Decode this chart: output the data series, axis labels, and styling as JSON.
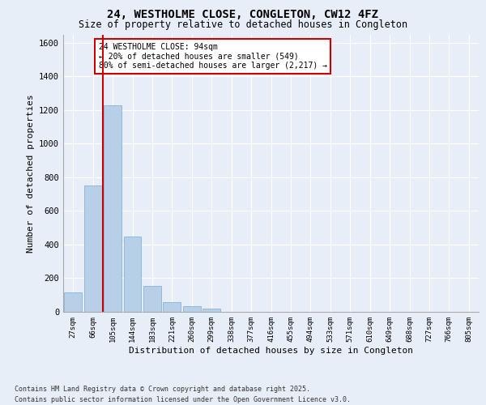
{
  "title_line1": "24, WESTHOLME CLOSE, CONGLETON, CW12 4FZ",
  "title_line2": "Size of property relative to detached houses in Congleton",
  "xlabel": "Distribution of detached houses by size in Congleton",
  "ylabel": "Number of detached properties",
  "categories": [
    "27sqm",
    "66sqm",
    "105sqm",
    "144sqm",
    "183sqm",
    "221sqm",
    "260sqm",
    "299sqm",
    "338sqm",
    "377sqm",
    "416sqm",
    "455sqm",
    "494sqm",
    "533sqm",
    "571sqm",
    "610sqm",
    "649sqm",
    "688sqm",
    "727sqm",
    "766sqm",
    "805sqm"
  ],
  "values": [
    115,
    750,
    1230,
    450,
    155,
    60,
    33,
    18,
    0,
    0,
    0,
    0,
    0,
    0,
    0,
    0,
    0,
    0,
    0,
    0,
    0
  ],
  "bar_color": "#b8cfe8",
  "bar_edge_color": "#7aaad4",
  "vline_x": 1.5,
  "vline_color": "#cc0000",
  "ylim": [
    0,
    1650
  ],
  "yticks": [
    0,
    200,
    400,
    600,
    800,
    1000,
    1200,
    1400,
    1600
  ],
  "annotation_text": "24 WESTHOLME CLOSE: 94sqm\n← 20% of detached houses are smaller (549)\n80% of semi-detached houses are larger (2,217) →",
  "annotation_box_color": "#cc0000",
  "footer_line1": "Contains HM Land Registry data © Crown copyright and database right 2025.",
  "footer_line2": "Contains public sector information licensed under the Open Government Licence v3.0.",
  "background_color": "#e8eef8",
  "plot_bg_color": "#e8eef8",
  "grid_color": "#ffffff"
}
